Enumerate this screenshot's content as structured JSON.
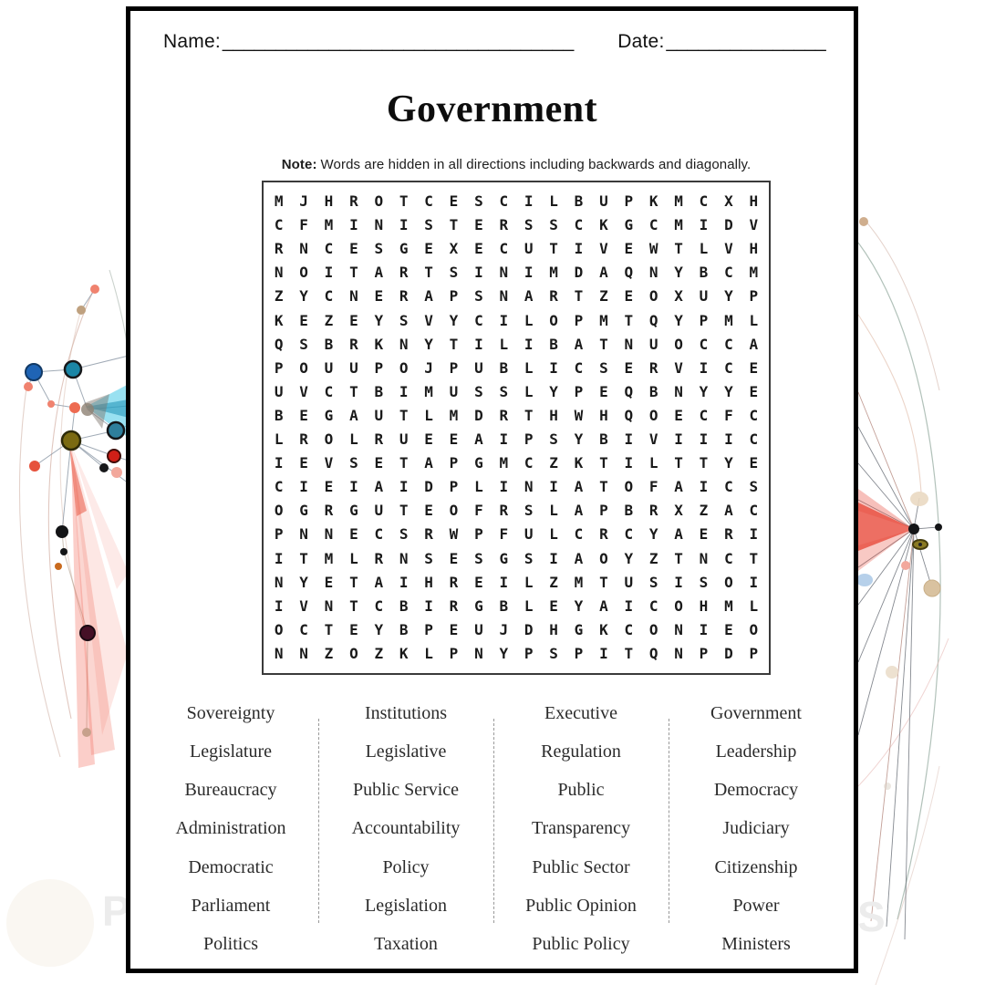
{
  "sheet": {
    "header": {
      "name_label": "Name:",
      "name_blank": "_________________________________",
      "date_label": "Date:",
      "date_blank": "_______________"
    },
    "title": "Government",
    "note": {
      "label": "Note:",
      "text": "Words are hidden in all directions including backwards and diagonally."
    },
    "grid": {
      "rows": [
        "MJHROTCESCILBUPKMCXH",
        "CFMINISTERSSCKGCMIDV",
        "RNCESGEXECUTIVEWTLVH",
        "NOITARTSINIMDAQNYBCM",
        "ZYCNERAPSNARTZEOXUYP",
        "KEZEYSVYCILOPMTQYPML",
        "QSBRKNYTILIBATNUOCCA",
        "POUUPOJPUBLICSERVICE",
        "UVCTBIMUSSLYPEQBNYYE",
        "BEGAUTLMDRTHWHQOECFC",
        "LROLRUEEAIPSYBIVIIIC",
        "IEVSETAPGMCZKTILTTYE",
        "CIEIAIDPLINIATOFAICS",
        "OGRGUTEOFRSLAPBRXZAC",
        "PNNECSRWPFULCRCYAERI",
        "ITMLRNSESGSIAOYZTNCT",
        "NYETAIHREILZMTUSISOI",
        "IVNTCBIRGBLEYAICOHML",
        "OCTEYBPEUJDHGKCONIEO",
        "NNZOZKLPNYPSPITQNPDP"
      ]
    },
    "word_columns": [
      [
        "Sovereignty",
        "Legislature",
        "Bureaucracy",
        "Administration",
        "Democratic",
        "Parliament",
        "Politics"
      ],
      [
        "Institutions",
        "Legislative",
        "Public Service",
        "Accountability",
        "Policy",
        "Legislation",
        "Taxation"
      ],
      [
        "Executive",
        "Regulation",
        "Public",
        "Transparency",
        "Public Sector",
        "Public Opinion",
        "Public Policy"
      ],
      [
        "Government",
        "Leadership",
        "Democracy",
        "Judiciary",
        "Citizenship",
        "Power",
        "Ministers"
      ]
    ]
  },
  "watermark": {
    "left_letter": "P",
    "right_letter": "S"
  },
  "colors": {
    "sheet_border": "#000000",
    "grid_border": "#3a3a3a",
    "letter_text": "#1a1a1a",
    "word_text": "#2b2b2b",
    "divider": "#999999",
    "accent_red_fan": "#e84b3c",
    "accent_cyan_fan": "#46c8e6",
    "node_blue": "#1f64b5",
    "node_teal": "#1b86a6",
    "node_olive": "#7b6a11",
    "node_salmon": "#f0826e"
  }
}
